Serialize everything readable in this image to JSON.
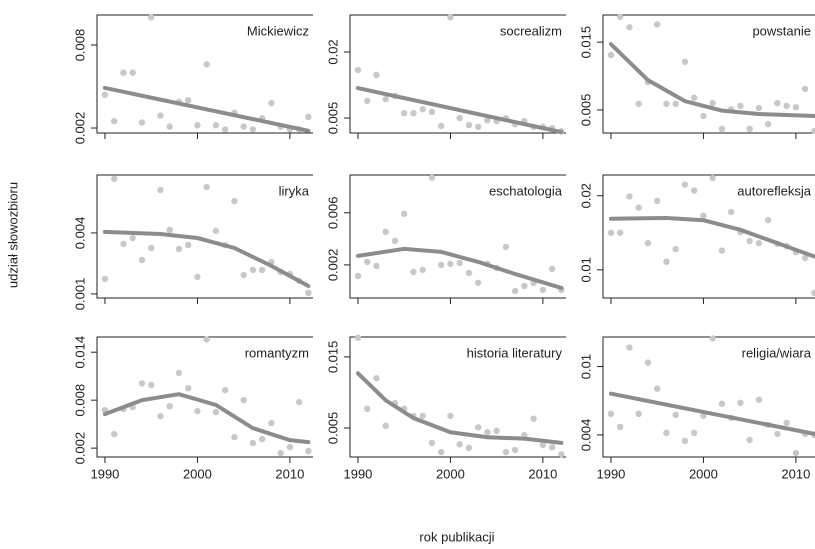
{
  "xlabel": "rok publikacji",
  "ylabel": "udział słowozbioru",
  "xlim": [
    1989.14,
    2012.5
  ],
  "xticks": [
    1990,
    2000,
    2010
  ],
  "chart_data": [
    {
      "type": "scatter",
      "title": "Mickiewicz",
      "ylim": [
        0.00164,
        0.01017
      ],
      "yticks": [
        0.002,
        0.008
      ],
      "series": [
        {
          "type": "points",
          "color": "#c8c8c8",
          "x": [
            1990,
            1991,
            1992,
            1993,
            1994,
            1995,
            1996,
            1997,
            1998,
            1999,
            2000,
            2001,
            2002,
            2003,
            2004,
            2005,
            2006,
            2007,
            2008,
            2009,
            2010,
            2011,
            2012
          ],
          "values": [
            0.0044,
            0.0025,
            0.006,
            0.006,
            0.0024,
            0.01,
            0.0029,
            0.0021,
            0.0039,
            0.004,
            0.0022,
            0.0066,
            0.0022,
            0.0019,
            0.0031,
            0.0021,
            0.0019,
            0.0027,
            0.0038,
            0.0021,
            0.0019,
            0.0019,
            0.0028
          ]
        },
        {
          "type": "line",
          "color": "#8c8c8c",
          "x": [
            1990,
            2012
          ],
          "values": [
            0.0049,
            0.0018
          ]
        }
      ]
    },
    {
      "type": "scatter",
      "title": "socrealizm",
      "ylim": [
        0.0016,
        0.0284
      ],
      "yticks": [
        0.005,
        0.02
      ],
      "series": [
        {
          "type": "points",
          "color": "#c8c8c8",
          "x": [
            1990,
            1991,
            1992,
            1993,
            1994,
            1995,
            1996,
            1997,
            1998,
            1999,
            2000,
            2001,
            2002,
            2003,
            2004,
            2005,
            2006,
            2007,
            2008,
            2009,
            2010,
            2011,
            2012
          ],
          "values": [
            0.0159,
            0.0089,
            0.0148,
            0.0093,
            0.01,
            0.0061,
            0.0061,
            0.007,
            0.0064,
            0.0032,
            0.0279,
            0.005,
            0.0034,
            0.003,
            0.0045,
            0.0043,
            0.005,
            0.0036,
            0.0043,
            0.003,
            0.003,
            0.0027,
            0.002
          ]
        },
        {
          "type": "line",
          "color": "#8c8c8c",
          "x": [
            1990,
            2012
          ],
          "values": [
            0.0118,
            0.0018
          ]
        }
      ]
    },
    {
      "type": "scatter",
      "title": "powstanie",
      "ylim": [
        0.0016,
        0.019
      ],
      "yticks": [
        0.005,
        0.015
      ],
      "series": [
        {
          "type": "points",
          "color": "#c8c8c8",
          "x": [
            1990,
            1991,
            1992,
            1993,
            1994,
            1995,
            1996,
            1997,
            1998,
            1999,
            2000,
            2001,
            2002,
            2003,
            2004,
            2005,
            2006,
            2007,
            2008,
            2009,
            2010,
            2011,
            2012
          ],
          "values": [
            0.0131,
            0.0187,
            0.0172,
            0.0059,
            0.0091,
            0.0176,
            0.0059,
            0.0059,
            0.0121,
            0.0068,
            0.0041,
            0.006,
            0.0022,
            0.0051,
            0.0056,
            0.0022,
            0.0053,
            0.0029,
            0.006,
            0.0056,
            0.0054,
            0.0081,
            0.0019
          ]
        },
        {
          "type": "line",
          "color": "#8c8c8c",
          "x": [
            1990,
            1994,
            1998,
            2002,
            2006,
            2012
          ],
          "values": [
            0.0147,
            0.0094,
            0.0063,
            0.0049,
            0.0044,
            0.0041
          ]
        }
      ]
    },
    {
      "type": "scatter",
      "title": "liryka",
      "ylim": [
        0.0008,
        0.00685
      ],
      "yticks": [
        0.001,
        0.004
      ],
      "series": [
        {
          "type": "points",
          "color": "#c8c8c8",
          "x": [
            1990,
            1991,
            1992,
            1993,
            1994,
            1995,
            1996,
            1997,
            1998,
            1999,
            2000,
            2001,
            2002,
            2003,
            2004,
            2005,
            2006,
            2007,
            2008,
            2009,
            2010,
            2011,
            2012
          ],
          "values": [
            0.00174,
            0.00666,
            0.00346,
            0.00375,
            0.00267,
            0.00326,
            0.00611,
            0.00415,
            0.00321,
            0.00341,
            0.00184,
            0.00626,
            0.0041,
            0.0034,
            0.00557,
            0.00193,
            0.00218,
            0.00218,
            0.00257,
            0.00208,
            0.00198,
            0.00164,
            0.00105
          ]
        },
        {
          "type": "line",
          "color": "#8c8c8c",
          "x": [
            1990,
            1996,
            2000,
            2004,
            2008,
            2012
          ],
          "values": [
            0.00405,
            0.00395,
            0.00375,
            0.00326,
            0.00238,
            0.00139
          ]
        }
      ]
    },
    {
      "type": "scatter",
      "title": "eschatologia",
      "ylim": [
        -0.00054,
        0.0089
      ],
      "yticks": [
        0.002,
        0.006
      ],
      "series": [
        {
          "type": "points",
          "color": "#c8c8c8",
          "x": [
            1990,
            1991,
            1992,
            1993,
            1994,
            1995,
            1996,
            1997,
            1998,
            1999,
            2000,
            2001,
            2002,
            2003,
            2004,
            2005,
            2006,
            2007,
            2008,
            2009,
            2010,
            2011,
            2012
          ],
          "values": [
            0.00115,
            0.00223,
            0.00192,
            0.00454,
            0.00385,
            0.00592,
            0.00146,
            0.00162,
            0.00869,
            0.002,
            0.00208,
            0.00215,
            0.00138,
            0.00062,
            0.00208,
            0.00177,
            0.00338,
            0.0,
            0.00038,
            0.00062,
            8e-05,
            0.00169,
            8e-05
          ]
        },
        {
          "type": "line",
          "color": "#8c8c8c",
          "x": [
            1990,
            1995,
            1999,
            2003,
            2007,
            2012
          ],
          "values": [
            0.00269,
            0.00323,
            0.003,
            0.00223,
            0.0013,
            0.00023
          ]
        }
      ]
    },
    {
      "type": "scatter",
      "title": "autorefleksja",
      "ylim": [
        0.0062,
        0.0228
      ],
      "yticks": [
        0.01,
        0.02
      ],
      "series": [
        {
          "type": "points",
          "color": "#c8c8c8",
          "x": [
            1990,
            1991,
            1992,
            1993,
            1994,
            1995,
            1996,
            1997,
            1998,
            1999,
            2000,
            2001,
            2002,
            2003,
            2004,
            2005,
            2006,
            2007,
            2008,
            2009,
            2010,
            2011,
            2012
          ],
          "values": [
            0.015,
            0.015,
            0.0199,
            0.0184,
            0.0136,
            0.0193,
            0.0111,
            0.0128,
            0.0215,
            0.0207,
            0.0173,
            0.0224,
            0.0126,
            0.0178,
            0.0151,
            0.0139,
            0.0136,
            0.0167,
            0.0135,
            0.0132,
            0.0124,
            0.0116,
            0.0069
          ]
        },
        {
          "type": "line",
          "color": "#8c8c8c",
          "x": [
            1990,
            1996,
            2000,
            2004,
            2008,
            2012
          ],
          "values": [
            0.0169,
            0.017,
            0.0167,
            0.0154,
            0.0136,
            0.0118
          ]
        }
      ]
    },
    {
      "type": "scatter",
      "title": "romantyzm",
      "ylim": [
        0.00089,
        0.0159
      ],
      "yticks": [
        0.002,
        0.008,
        0.014
      ],
      "series": [
        {
          "type": "points",
          "color": "#c8c8c8",
          "x": [
            1990,
            1991,
            1992,
            1993,
            1994,
            1995,
            1996,
            1997,
            1998,
            1999,
            2000,
            2001,
            2002,
            2003,
            2004,
            2005,
            2006,
            2007,
            2008,
            2009,
            2010,
            2011,
            2012
          ],
          "values": [
            0.00675,
            0.00375,
            0.00688,
            0.00713,
            0.0101,
            0.0099,
            0.006,
            0.00725,
            0.0114,
            0.0095,
            0.00663,
            0.0156,
            0.0065,
            0.00925,
            0.00338,
            0.008,
            0.00263,
            0.00313,
            0.00513,
            0.00138,
            0.00213,
            0.00775,
            0.00163
          ]
        },
        {
          "type": "line",
          "color": "#8c8c8c",
          "x": [
            1990,
            1994,
            1998,
            2002,
            2006,
            2010,
            2012
          ],
          "values": [
            0.00625,
            0.008,
            0.00875,
            0.0074,
            0.0045,
            0.003,
            0.00275
          ]
        }
      ]
    },
    {
      "type": "scatter",
      "title": "historia literatury",
      "ylim": [
        0.00092,
        0.0178
      ],
      "yticks": [
        0.005,
        0.015
      ],
      "series": [
        {
          "type": "points",
          "color": "#c8c8c8",
          "x": [
            1990,
            1991,
            1992,
            1993,
            1994,
            1995,
            1996,
            1997,
            1998,
            1999,
            2000,
            2001,
            2002,
            2003,
            2004,
            2005,
            2006,
            2007,
            2008,
            2009,
            2010,
            2011,
            2012
          ],
          "values": [
            0.0177,
            0.0077,
            0.012,
            0.0053,
            0.0085,
            0.0077,
            0.0067,
            0.0067,
            0.0029,
            0.0016,
            0.0067,
            0.0027,
            0.0022,
            0.0051,
            0.0044,
            0.0046,
            0.0016,
            0.0019,
            0.004,
            0.0063,
            0.0026,
            0.0023,
            0.0013
          ]
        },
        {
          "type": "line",
          "color": "#8c8c8c",
          "x": [
            1990,
            1993,
            1996,
            2000,
            2004,
            2008,
            2012
          ],
          "values": [
            0.0127,
            0.0089,
            0.0064,
            0.0044,
            0.0037,
            0.0035,
            0.0029
          ]
        }
      ]
    },
    {
      "type": "scatter",
      "title": "religia/wiara",
      "ylim": [
        0.00206,
        0.0126
      ],
      "yticks": [
        0.004,
        0.01
      ],
      "series": [
        {
          "type": "points",
          "color": "#c8c8c8",
          "x": [
            1990,
            1991,
            1992,
            1993,
            1994,
            1995,
            1996,
            1997,
            1998,
            1999,
            2000,
            2001,
            2002,
            2003,
            2004,
            2005,
            2006,
            2007,
            2008,
            2009,
            2010,
            2011,
            2012
          ],
          "values": [
            0.00585,
            0.0047,
            0.01168,
            0.00585,
            0.01035,
            0.00806,
            0.00418,
            0.00576,
            0.00347,
            0.00418,
            0.00568,
            0.01247,
            0.00674,
            0.0055,
            0.00682,
            0.00356,
            0.00709,
            0.00488,
            0.00409,
            0.00506,
            0.00241,
            0.00409,
            0.004
          ]
        },
        {
          "type": "line",
          "color": "#8c8c8c",
          "x": [
            1990,
            2012
          ],
          "values": [
            0.00762,
            0.00409
          ]
        }
      ]
    }
  ]
}
